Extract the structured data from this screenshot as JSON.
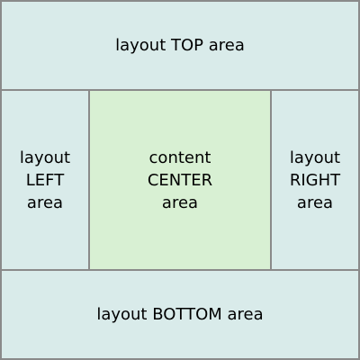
{
  "regions": {
    "top": {
      "label": "layout TOP area"
    },
    "left": {
      "lines": [
        "layout",
        "LEFT",
        "area"
      ]
    },
    "center": {
      "lines": [
        "content",
        "CENTER",
        "area"
      ]
    },
    "right": {
      "lines": [
        "layout",
        "RIGHT",
        "area"
      ]
    },
    "bottom": {
      "label": "layout BOTTOM area"
    }
  },
  "colors": {
    "layout_fill": "#d9ebea",
    "content_fill": "#d8f0d3",
    "border": "#8a8a8a"
  }
}
